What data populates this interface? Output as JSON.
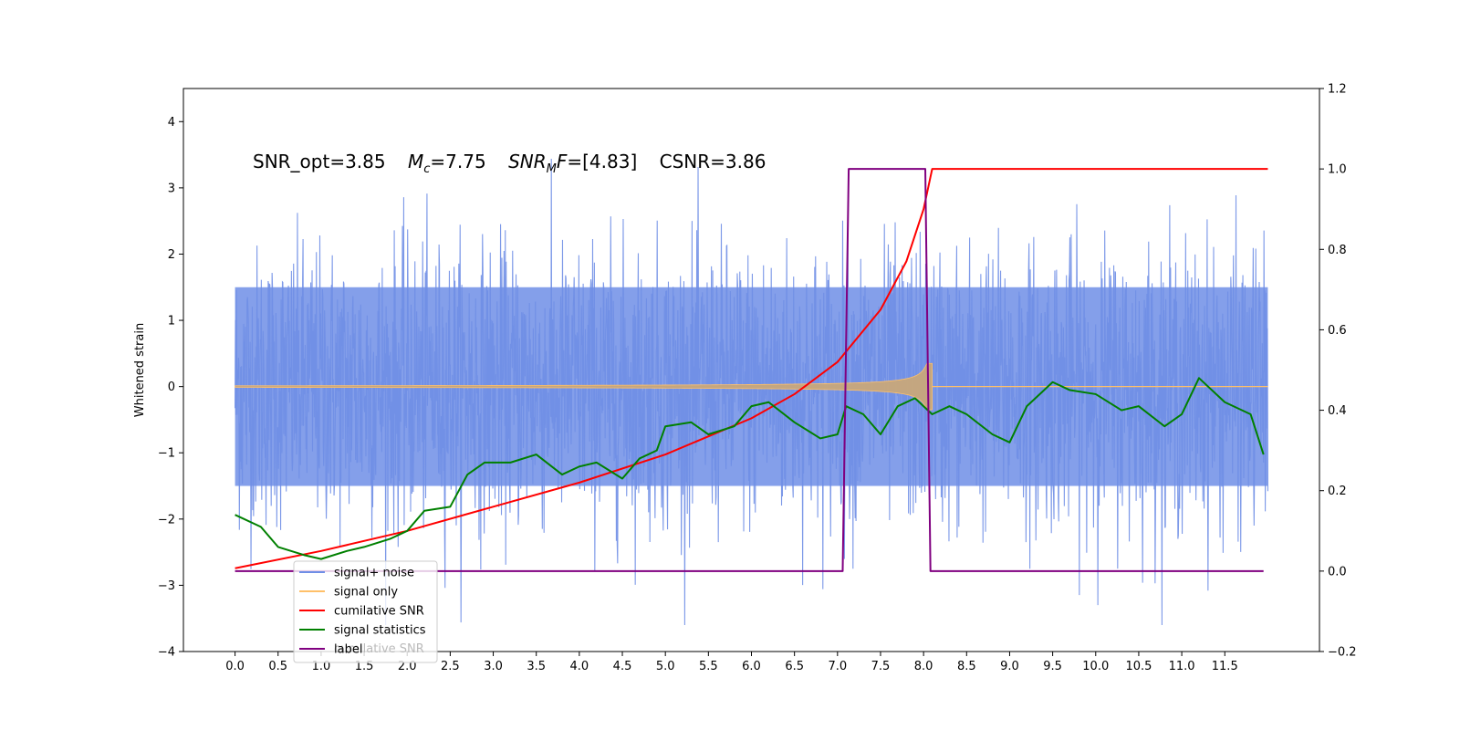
{
  "chart_data": {
    "type": "line",
    "title": "",
    "annotation": {
      "snr_opt": "SNR_opt=3.85",
      "mc_symbol": "M",
      "mc_sub": "c",
      "mc_value": "=7.75",
      "snrmf_symbol": "SNR",
      "snrmf_sub": "M",
      "snrmf_F": "F",
      "snrmf_value": "=[4.83]",
      "csnr": "CSNR=3.86"
    },
    "xlabel": "",
    "ylabel": "Whitened strain",
    "y2label": "",
    "xlim": [
      -0.6,
      12.6
    ],
    "ylim": [
      -4,
      4.5
    ],
    "y2lim": [
      -0.2,
      1.2
    ],
    "x_ticks": [
      "0.0",
      "0.5",
      "1.0",
      "1.5",
      "2.0",
      "2.5",
      "3.0",
      "3.5",
      "4.0",
      "4.5",
      "5.0",
      "5.5",
      "6.0",
      "6.5",
      "7.0",
      "7.5",
      "8.0",
      "8.5",
      "9.0",
      "9.5",
      "10.0",
      "10.5",
      "11.0",
      "11.5"
    ],
    "y_ticks": [
      "−4",
      "−3",
      "−2",
      "−1",
      "0",
      "1",
      "2",
      "3",
      "4"
    ],
    "y2_ticks": [
      "−0.2",
      "0.0",
      "0.2",
      "0.4",
      "0.6",
      "0.8",
      "1.0",
      "1.2"
    ],
    "noise": {
      "x_start": 0.0,
      "x_end": 12.0,
      "typical_range": [
        -2.5,
        2.6
      ],
      "extreme_range": [
        -3.6,
        4.1
      ]
    },
    "signal_only": {
      "x_start": 0.0,
      "x_end": 8.1,
      "merger_x": 8.1,
      "peak_amplitude": 0.35
    },
    "series": [
      {
        "name": "signal+ noise",
        "color": "#6f8ee6",
        "axis": "left"
      },
      {
        "name": "signal only",
        "color": "#ffc069",
        "axis": "left"
      },
      {
        "name": "cumilative SNR",
        "color": "#ff0000",
        "axis": "right",
        "x": [
          0.0,
          1.0,
          2.0,
          3.0,
          4.0,
          5.0,
          6.0,
          6.5,
          7.0,
          7.5,
          7.8,
          8.0,
          8.08,
          8.1,
          12.0
        ],
        "values": [
          0.007,
          0.05,
          0.1,
          0.16,
          0.22,
          0.29,
          0.38,
          0.44,
          0.52,
          0.65,
          0.77,
          0.9,
          0.98,
          1.0,
          1.0
        ]
      },
      {
        "name": "signal statistics",
        "color": "#008000",
        "axis": "right",
        "x": [
          0.0,
          0.3,
          0.5,
          0.8,
          1.0,
          1.3,
          1.5,
          1.8,
          2.0,
          2.2,
          2.5,
          2.7,
          2.9,
          3.2,
          3.5,
          3.8,
          4.0,
          4.2,
          4.5,
          4.7,
          4.9,
          5.0,
          5.3,
          5.5,
          5.8,
          6.0,
          6.2,
          6.5,
          6.8,
          7.0,
          7.1,
          7.3,
          7.5,
          7.7,
          7.9,
          8.1,
          8.3,
          8.5,
          8.8,
          9.0,
          9.2,
          9.5,
          9.7,
          10.0,
          10.3,
          10.5,
          10.8,
          11.0,
          11.2,
          11.5,
          11.8,
          11.95
        ],
        "values": [
          0.14,
          0.11,
          0.06,
          0.04,
          0.03,
          0.05,
          0.06,
          0.08,
          0.1,
          0.15,
          0.16,
          0.24,
          0.27,
          0.27,
          0.29,
          0.24,
          0.26,
          0.27,
          0.23,
          0.28,
          0.3,
          0.36,
          0.37,
          0.34,
          0.36,
          0.41,
          0.42,
          0.37,
          0.33,
          0.34,
          0.41,
          0.39,
          0.34,
          0.41,
          0.43,
          0.39,
          0.41,
          0.39,
          0.34,
          0.32,
          0.41,
          0.47,
          0.45,
          0.44,
          0.4,
          0.41,
          0.36,
          0.39,
          0.48,
          0.42,
          0.39,
          0.29
        ]
      },
      {
        "name": "label",
        "color": "#800080",
        "axis": "right",
        "x": [
          0.0,
          7.06,
          7.13,
          8.02,
          8.08,
          11.95
        ],
        "values": [
          0.0,
          0.0,
          1.0,
          1.0,
          0.0,
          0.0
        ]
      }
    ],
    "legend": {
      "placement": "lower-left",
      "entries": [
        "signal+ noise",
        "signal only",
        "cumilative SNR",
        "signal statistics",
        "label"
      ],
      "ghost_text": "cumilative SNR"
    },
    "grid": false
  }
}
